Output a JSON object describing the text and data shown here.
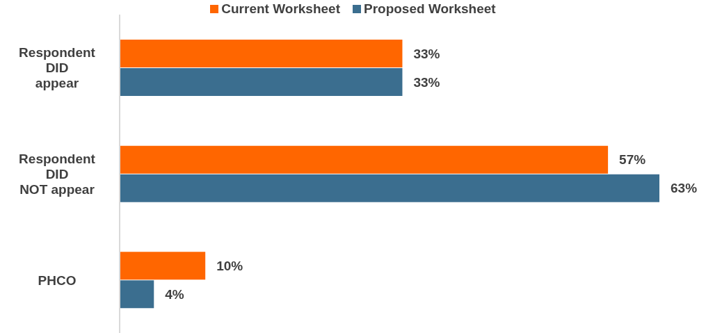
{
  "chart_data": {
    "type": "bar",
    "orientation": "horizontal",
    "categories": [
      "Respondent\nDID\nappear",
      "Respondent\nDID\nNOT appear",
      "PHCO"
    ],
    "series": [
      {
        "name": "Current Worksheet",
        "color": "#ff6600",
        "values": [
          33,
          57,
          10
        ],
        "value_labels": [
          "33%",
          "57%",
          "10%"
        ]
      },
      {
        "name": "Proposed Worksheet",
        "color": "#3b6e8f",
        "values": [
          33,
          63,
          4
        ],
        "value_labels": [
          "33%",
          "63%",
          "4%"
        ]
      }
    ],
    "legend": "top"
  }
}
